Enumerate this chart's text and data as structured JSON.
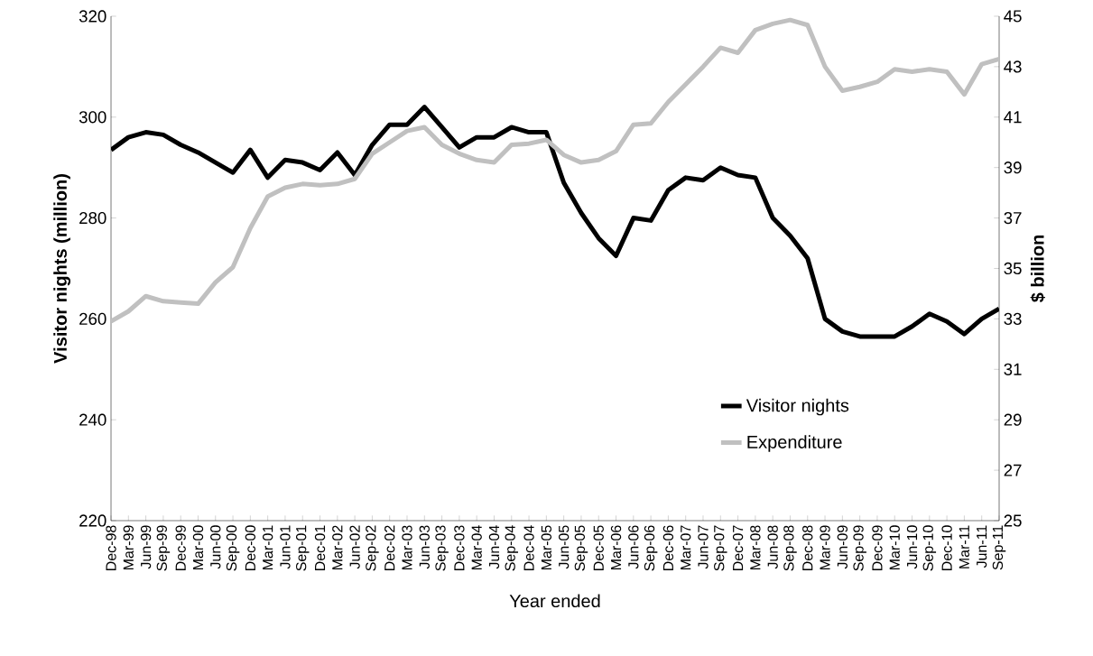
{
  "chart_data": {
    "type": "line",
    "xlabel": "Year ended",
    "ylabel": "Visitor nights (million)",
    "y2label": "$ billion",
    "categories": [
      "Dec-98",
      "Mar-99",
      "Jun-99",
      "Sep-99",
      "Dec-99",
      "Mar-00",
      "Jun-00",
      "Sep-00",
      "Dec-00",
      "Mar-01",
      "Jun-01",
      "Sep-01",
      "Dec-01",
      "Mar-02",
      "Jun-02",
      "Sep-02",
      "Dec-02",
      "Mar-03",
      "Jun-03",
      "Sep-03",
      "Dec-03",
      "Mar-04",
      "Jun-04",
      "Sep-04",
      "Dec-04",
      "Mar-05",
      "Jun-05",
      "Sep-05",
      "Dec-05",
      "Mar-06",
      "Jun-06",
      "Sep-06",
      "Dec-06",
      "Mar-07",
      "Jun-07",
      "Sep-07",
      "Dec-07",
      "Mar-08",
      "Jun-08",
      "Sep-08",
      "Dec-08",
      "Mar-09",
      "Jun-09",
      "Sep-09",
      "Dec-09",
      "Mar-10",
      "Jun-10",
      "Sep-10",
      "Dec-10",
      "Mar-11",
      "Jun-11",
      "Sep-11"
    ],
    "series": [
      {
        "name": "Visitor nights",
        "color": "#000000",
        "values": [
          293.5,
          296,
          297,
          296.5,
          294.5,
          293,
          291,
          289,
          293.5,
          288,
          291.5,
          291,
          289.5,
          293,
          288.5,
          294.5,
          298.5,
          298.5,
          302,
          298,
          294,
          296,
          296,
          298,
          297,
          297,
          287,
          281,
          276,
          272.5,
          280,
          279.5,
          285.5,
          288,
          287.5,
          290,
          288.5,
          288,
          280,
          276.5,
          272,
          260,
          257.5,
          256.5,
          256.5,
          256.5,
          258.5,
          261,
          259.5,
          257,
          260,
          262
        ]
      },
      {
        "name": "Expenditure",
        "color": "#c0c0c0",
        "axis": "y2",
        "values": [
          32.9,
          33.3,
          33.9,
          33.7,
          33.65,
          33.6,
          34.45,
          35.05,
          36.6,
          37.85,
          38.2,
          38.35,
          38.3,
          38.35,
          38.55,
          39.55,
          40,
          40.45,
          40.6,
          39.9,
          39.55,
          39.3,
          39.2,
          39.9,
          39.95,
          40.1,
          39.5,
          39.2,
          39.3,
          39.65,
          40.7,
          40.75,
          41.6,
          42.3,
          43,
          43.75,
          43.55,
          44.45,
          44.7,
          44.85,
          44.65,
          43,
          42.05,
          42.2,
          42.4,
          42.9,
          42.8,
          42.9,
          42.8,
          41.9,
          43.1,
          43.3
        ]
      }
    ],
    "ylim": [
      220,
      320
    ],
    "yticks": [
      220,
      240,
      260,
      280,
      300,
      320
    ],
    "y2lim": [
      25,
      45
    ],
    "y2ticks": [
      25,
      27,
      29,
      31,
      33,
      35,
      37,
      39,
      41,
      43,
      45
    ],
    "grid": false,
    "legend": "bottom right",
    "marker": "none",
    "line_style": "solid"
  }
}
